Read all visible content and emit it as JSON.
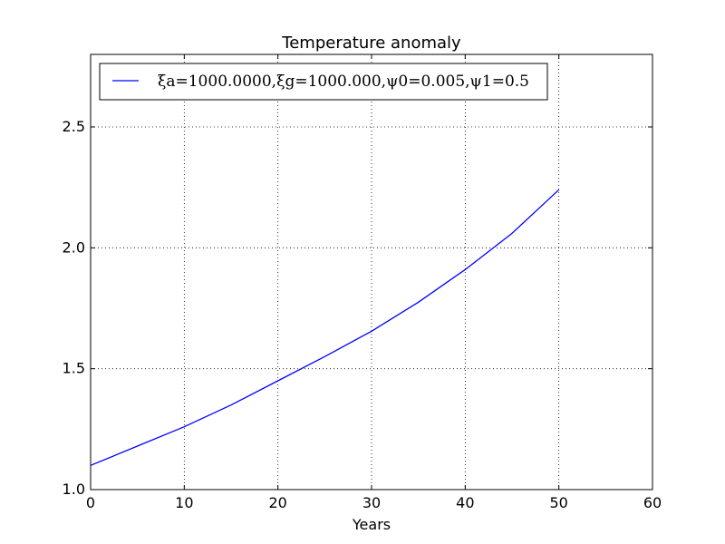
{
  "chart_data": {
    "type": "line",
    "title": "Temperature anomaly",
    "xlabel": "Years",
    "ylabel": "",
    "xlim": [
      0,
      60
    ],
    "ylim": [
      1.0,
      2.8
    ],
    "xticks": [
      0,
      10,
      20,
      30,
      40,
      50,
      60
    ],
    "yticks": [
      1.0,
      1.5,
      2.0,
      2.5
    ],
    "xtick_labels": [
      "0",
      "10",
      "20",
      "30",
      "40",
      "50",
      "60"
    ],
    "ytick_labels": [
      "1.0",
      "1.5",
      "2.0",
      "2.5"
    ],
    "grid": true,
    "legend_position": "upper-left",
    "series": [
      {
        "name": "ξa=1000.0000,ξg=1000.000,ψ0=0.005,ψ1=0.5",
        "color": "#0000ff",
        "x": [
          0,
          5,
          10,
          15,
          20,
          25,
          30,
          35,
          40,
          45,
          50
        ],
        "y": [
          1.1,
          1.18,
          1.26,
          1.35,
          1.45,
          1.55,
          1.655,
          1.775,
          1.91,
          2.06,
          2.24
        ]
      }
    ]
  }
}
